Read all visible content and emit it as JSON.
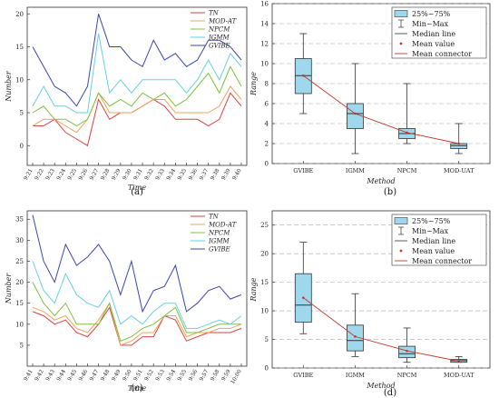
{
  "panels": [
    {
      "label": "(a)"
    },
    {
      "label": "(b)"
    },
    {
      "label": "(c)"
    },
    {
      "label": "(d)"
    }
  ],
  "chart_data": [
    {
      "type": "line",
      "panel": "a",
      "xlabel": "Time",
      "ylabel": "Number",
      "ylim": [
        -3,
        21
      ],
      "yticks": [
        0,
        5,
        10,
        15,
        20
      ],
      "categories": [
        "9:21",
        "9:22",
        "9:23",
        "9:24",
        "9:25",
        "9:26",
        "9:27",
        "9:28",
        "9:29",
        "9:30",
        "9:31",
        "9:32",
        "9:33",
        "9:34",
        "9:35",
        "9:36",
        "9:37",
        "9:38",
        "9:39",
        "9:40"
      ],
      "series": [
        {
          "name": "TN",
          "color": "#d64541",
          "values": [
            3,
            3,
            4,
            2,
            1,
            0,
            7,
            4,
            5,
            5,
            6,
            7,
            6,
            4,
            4,
            4,
            3,
            4,
            8,
            6
          ]
        },
        {
          "name": "MOD-AT",
          "color": "#f0a35e",
          "values": [
            3,
            4,
            4,
            3,
            2,
            4,
            8,
            5,
            5,
            5,
            6,
            7,
            7,
            5,
            5,
            5,
            5,
            6,
            9,
            7
          ]
        },
        {
          "name": "NPCM",
          "color": "#7cc142",
          "values": [
            5,
            6,
            4,
            4,
            3,
            4,
            8,
            6,
            7,
            6,
            8,
            7,
            8,
            6,
            7,
            9,
            11,
            8,
            12,
            9
          ]
        },
        {
          "name": "IGMM",
          "color": "#6ad0e0",
          "values": [
            6,
            9,
            6,
            6,
            5,
            5,
            17,
            8,
            10,
            8,
            10,
            10,
            10,
            10,
            8,
            10,
            13,
            10,
            14,
            12
          ]
        },
        {
          "name": "GVIBE",
          "color": "#3b47a8",
          "values": [
            15,
            12,
            9,
            8,
            6,
            9,
            20,
            15,
            15,
            13,
            12,
            16,
            13,
            14,
            12,
            13,
            16,
            16,
            15,
            13
          ]
        }
      ]
    },
    {
      "type": "box",
      "panel": "b",
      "xlabel": "Method",
      "ylabel": "Range",
      "ylim": [
        0,
        16
      ],
      "yticks": [
        0,
        2,
        4,
        6,
        8,
        10,
        12,
        14,
        16
      ],
      "categories": [
        "GVIBE",
        "IGMM",
        "NPCM",
        "MOD-UAT"
      ],
      "boxes": [
        {
          "min": 5,
          "q1": 7,
          "median": 8.8,
          "q3": 10.5,
          "max": 13,
          "mean": 8.8
        },
        {
          "min": 1,
          "q1": 3.5,
          "median": 5,
          "q3": 6,
          "max": 10,
          "mean": 5
        },
        {
          "min": 2,
          "q1": 2.5,
          "median": 3,
          "q3": 3.5,
          "max": 8,
          "mean": 3.1
        },
        {
          "min": 1,
          "q1": 1.5,
          "median": 1.8,
          "q3": 2,
          "max": 4,
          "mean": 2
        }
      ],
      "legend": [
        "25%~75%",
        "Min~Max",
        "Median line",
        "Mean value",
        "Mean connector"
      ]
    },
    {
      "type": "line",
      "panel": "c",
      "xlabel": "Time",
      "ylabel": "Number",
      "ylim": [
        0,
        37
      ],
      "yticks": [
        5,
        10,
        15,
        20,
        25,
        30,
        35
      ],
      "categories": [
        "9:41",
        "9:42",
        "9:43",
        "9:44",
        "9:45",
        "9:46",
        "9:47",
        "9:48",
        "9:49",
        "9:50",
        "9:51",
        "9:52",
        "9:53",
        "9:54",
        "9:55",
        "9:56",
        "9:57",
        "9:58",
        "9:59",
        "10:00"
      ],
      "series": [
        {
          "name": "TN",
          "color": "#d64541",
          "values": [
            13,
            12,
            10,
            11,
            8,
            7,
            10,
            14,
            5,
            5,
            7,
            7,
            12,
            11,
            6,
            7,
            8,
            8,
            8,
            9
          ]
        },
        {
          "name": "MOD-AT",
          "color": "#f0a35e",
          "values": [
            14,
            13,
            11,
            12,
            9,
            8,
            11,
            15,
            5,
            6,
            8,
            8,
            12,
            12,
            7,
            8,
            8,
            9,
            9,
            10
          ]
        },
        {
          "name": "NPCM",
          "color": "#7cc142",
          "values": [
            20,
            15,
            12,
            15,
            10,
            10,
            10,
            15,
            6,
            7,
            9,
            10,
            12,
            14,
            8,
            8,
            9,
            10,
            10,
            10
          ]
        },
        {
          "name": "IGMM",
          "color": "#6ad0e0",
          "values": [
            25,
            18,
            15,
            22,
            17,
            15,
            14,
            18,
            10,
            12,
            10,
            13,
            15,
            15,
            9,
            9,
            10,
            11,
            10,
            12
          ]
        },
        {
          "name": "GVIBE",
          "color": "#3b47a8",
          "values": [
            36,
            25,
            20,
            29,
            24,
            26,
            29,
            25,
            17,
            25,
            13,
            18,
            19,
            24,
            13,
            15,
            18,
            19,
            16,
            17
          ]
        }
      ]
    },
    {
      "type": "box",
      "panel": "d",
      "xlabel": "Method",
      "ylabel": "Range",
      "ylim": [
        0,
        27.5
      ],
      "yticks": [
        0,
        5,
        10,
        15,
        20,
        25
      ],
      "categories": [
        "GVIBE",
        "IGMM",
        "NPCM",
        "MOD-UAT"
      ],
      "boxes": [
        {
          "min": 6,
          "q1": 8,
          "median": 11,
          "q3": 16.5,
          "max": 22,
          "mean": 12.3
        },
        {
          "min": 2,
          "q1": 3,
          "median": 4.8,
          "q3": 7.5,
          "max": 13,
          "mean": 5.5
        },
        {
          "min": 1,
          "q1": 1.8,
          "median": 2.5,
          "q3": 3.8,
          "max": 7,
          "mean": 3
        },
        {
          "min": 1,
          "q1": 1,
          "median": 1.3,
          "q3": 1.5,
          "max": 2,
          "mean": 1.2
        }
      ],
      "legend": [
        "25%~75%",
        "Min~Max",
        "Median line",
        "Mean value",
        "Mean connector"
      ]
    }
  ]
}
